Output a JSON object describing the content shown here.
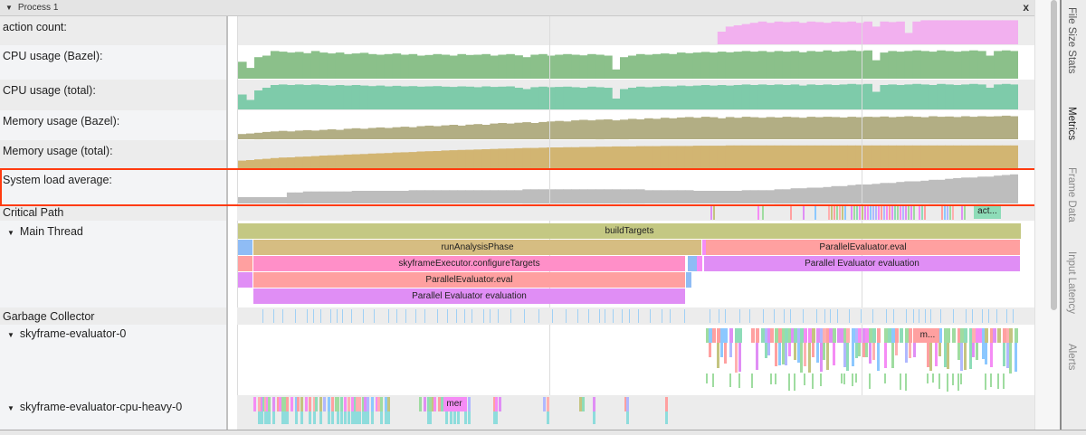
{
  "header": {
    "title": "Process 1",
    "close": "x"
  },
  "counters": [
    {
      "label": "action count:",
      "color": "#f2b0ef",
      "values": [
        0,
        0,
        0,
        0,
        0,
        0,
        0,
        0,
        0,
        0,
        0,
        0,
        0,
        0,
        0,
        0,
        0,
        0,
        0,
        0,
        0,
        0,
        0,
        0,
        0,
        0,
        0,
        0,
        0,
        0,
        0,
        0,
        0,
        0,
        0,
        0,
        0,
        0,
        0,
        0,
        0,
        0,
        0,
        0,
        0,
        0,
        0,
        0,
        0,
        0,
        0,
        0,
        0,
        0,
        0,
        0,
        0,
        0,
        0,
        0.5,
        0.7,
        0.75,
        0.8,
        0.85,
        0.9,
        0.85,
        0.9,
        0.88,
        0.9,
        0.85,
        0.9,
        0.88,
        0.85,
        0.9,
        0.88,
        0.9,
        0.85,
        0.9,
        0.7,
        0.9,
        0.88,
        0.9,
        0.45,
        0.9,
        0.95,
        0.95,
        0.95,
        0.95,
        0.95,
        0.95,
        0.95,
        0.95,
        0.95,
        0.95,
        0.95,
        0.95
      ]
    },
    {
      "label": "CPU usage (Bazel):",
      "color": "#8bc08a",
      "values": [
        0.55,
        0.35,
        0.7,
        0.75,
        0.9,
        0.88,
        0.85,
        0.87,
        0.83,
        0.9,
        0.85,
        0.82,
        0.85,
        0.8,
        0.82,
        0.84,
        0.8,
        0.78,
        0.8,
        0.82,
        0.78,
        0.8,
        0.75,
        0.77,
        0.8,
        0.78,
        0.75,
        0.8,
        0.77,
        0.78,
        0.8,
        0.75,
        0.78,
        0.8,
        0.76,
        0.7,
        0.78,
        0.8,
        0.75,
        0.78,
        0.8,
        0.78,
        0.76,
        0.8,
        0.78,
        0.75,
        0.3,
        0.7,
        0.75,
        0.8,
        0.78,
        0.8,
        0.82,
        0.8,
        0.85,
        0.83,
        0.85,
        0.87,
        0.85,
        0.88,
        0.86,
        0.88,
        0.9,
        0.88,
        0.9,
        0.87,
        0.9,
        0.88,
        0.9,
        0.86,
        0.9,
        0.88,
        0.92,
        0.88,
        0.9,
        0.92,
        0.9,
        0.92,
        0.6,
        0.85,
        0.9,
        0.88,
        0.9,
        0.92,
        0.9,
        0.88,
        0.92,
        0.9,
        0.88,
        0.9,
        0.92,
        0.9,
        0.75,
        0.9,
        0.92,
        0.9
      ]
    },
    {
      "label": "CPU usage (total):",
      "color": "#7ecbaa",
      "values": [
        0.55,
        0.35,
        0.7,
        0.8,
        0.9,
        0.92,
        0.9,
        0.92,
        0.9,
        0.92,
        0.9,
        0.88,
        0.9,
        0.88,
        0.9,
        0.88,
        0.86,
        0.88,
        0.85,
        0.87,
        0.85,
        0.86,
        0.84,
        0.85,
        0.86,
        0.84,
        0.83,
        0.85,
        0.84,
        0.82,
        0.85,
        0.83,
        0.84,
        0.85,
        0.8,
        0.75,
        0.82,
        0.84,
        0.82,
        0.83,
        0.84,
        0.82,
        0.8,
        0.84,
        0.82,
        0.8,
        0.4,
        0.75,
        0.8,
        0.84,
        0.82,
        0.84,
        0.86,
        0.85,
        0.88,
        0.86,
        0.88,
        0.9,
        0.88,
        0.9,
        0.88,
        0.9,
        0.92,
        0.9,
        0.92,
        0.9,
        0.92,
        0.9,
        0.92,
        0.88,
        0.92,
        0.9,
        0.92,
        0.9,
        0.92,
        0.94,
        0.92,
        0.94,
        0.65,
        0.9,
        0.92,
        0.9,
        0.92,
        0.94,
        0.92,
        0.9,
        0.94,
        0.92,
        0.9,
        0.92,
        0.94,
        0.92,
        0.8,
        0.92,
        0.94,
        0.92
      ]
    },
    {
      "label": "Memory usage (Bazel):",
      "color": "#b2ae84",
      "values": [
        0.2,
        0.22,
        0.25,
        0.28,
        0.3,
        0.32,
        0.3,
        0.33,
        0.35,
        0.33,
        0.36,
        0.38,
        0.36,
        0.4,
        0.42,
        0.4,
        0.43,
        0.45,
        0.43,
        0.46,
        0.48,
        0.46,
        0.5,
        0.52,
        0.5,
        0.53,
        0.55,
        0.52,
        0.56,
        0.58,
        0.55,
        0.6,
        0.62,
        0.6,
        0.63,
        0.65,
        0.62,
        0.66,
        0.68,
        0.7,
        0.68,
        0.72,
        0.74,
        0.72,
        0.75,
        0.76,
        0.72,
        0.75,
        0.78,
        0.76,
        0.8,
        0.78,
        0.82,
        0.8,
        0.83,
        0.85,
        0.82,
        0.86,
        0.84,
        0.8,
        0.85,
        0.82,
        0.86,
        0.84,
        0.82,
        0.85,
        0.83,
        0.86,
        0.84,
        0.82,
        0.86,
        0.84,
        0.86,
        0.85,
        0.83,
        0.86,
        0.84,
        0.86,
        0.85,
        0.87,
        0.84,
        0.86,
        0.88,
        0.86,
        0.84,
        0.88,
        0.86,
        0.87,
        0.85,
        0.88,
        0.86,
        0.88,
        0.87,
        0.88,
        0.9,
        0.88
      ]
    },
    {
      "label": "Memory usage (total):",
      "color": "#d2b572",
      "values": [
        0.3,
        0.32,
        0.35,
        0.37,
        0.4,
        0.42,
        0.43,
        0.45,
        0.46,
        0.48,
        0.5,
        0.51,
        0.52,
        0.54,
        0.55,
        0.56,
        0.58,
        0.59,
        0.6,
        0.62,
        0.63,
        0.64,
        0.66,
        0.67,
        0.68,
        0.7,
        0.71,
        0.72,
        0.73,
        0.74,
        0.75,
        0.76,
        0.77,
        0.78,
        0.79,
        0.8,
        0.8,
        0.81,
        0.82,
        0.82,
        0.83,
        0.83,
        0.84,
        0.84,
        0.85,
        0.85,
        0.86,
        0.86,
        0.86,
        0.87,
        0.87,
        0.87,
        0.88,
        0.88,
        0.88,
        0.88,
        0.89,
        0.89,
        0.89,
        0.89,
        0.9,
        0.9,
        0.9,
        0.9,
        0.9,
        0.9,
        0.9,
        0.9,
        0.9,
        0.9,
        0.9,
        0.9,
        0.9,
        0.9,
        0.9,
        0.9,
        0.9,
        0.9,
        0.9,
        0.9,
        0.9,
        0.9,
        0.9,
        0.9,
        0.9,
        0.9,
        0.9,
        0.9,
        0.9,
        0.9,
        0.9,
        0.9,
        0.9,
        0.9,
        0.9,
        0.9
      ]
    },
    {
      "label": "System load average:",
      "color": "#bdbdbd",
      "values": [
        0.2,
        0.2,
        0.2,
        0.2,
        0.2,
        0.2,
        0.35,
        0.35,
        0.38,
        0.38,
        0.38,
        0.38,
        0.38,
        0.38,
        0.4,
        0.4,
        0.4,
        0.4,
        0.4,
        0.4,
        0.4,
        0.42,
        0.42,
        0.42,
        0.42,
        0.42,
        0.42,
        0.42,
        0.42,
        0.42,
        0.42,
        0.42,
        0.42,
        0.42,
        0.42,
        0.45,
        0.45,
        0.45,
        0.45,
        0.45,
        0.45,
        0.45,
        0.45,
        0.45,
        0.45,
        0.45,
        0.45,
        0.45,
        0.45,
        0.45,
        0.42,
        0.42,
        0.42,
        0.42,
        0.42,
        0.42,
        0.4,
        0.4,
        0.4,
        0.4,
        0.4,
        0.4,
        0.42,
        0.42,
        0.42,
        0.42,
        0.45,
        0.45,
        0.48,
        0.48,
        0.5,
        0.5,
        0.52,
        0.55,
        0.55,
        0.58,
        0.6,
        0.6,
        0.62,
        0.65,
        0.65,
        0.68,
        0.7,
        0.7,
        0.72,
        0.75,
        0.75,
        0.78,
        0.8,
        0.82,
        0.82,
        0.85,
        0.85,
        0.88,
        0.9,
        0.92
      ]
    }
  ],
  "threads": {
    "critical_path": "Critical Path",
    "critical_slice": "act...",
    "main_thread": "Main Thread",
    "gc": "Garbage Collector",
    "eval0": "skyframe-evaluator-0",
    "eval0_slice": "m...",
    "cpu_heavy": "skyframe-evaluator-cpu-heavy-0",
    "cpu_heavy_slice": "mer"
  },
  "main_slices": {
    "build": "buildTargets",
    "analysis": "runAnalysisPhase",
    "pe_eval_right": "ParallelEvaluator.eval",
    "configure": "skyframeExecutor.configureTargets",
    "pe_eval_right2": "Parallel Evaluator evaluation",
    "pe_eval_left": "ParallelEvaluator.eval",
    "pe_evaluation_left": "Parallel Evaluator evaluation"
  },
  "side_tabs": [
    "File Size Stats",
    "Metrics",
    "Frame Data",
    "Input Latency",
    "Alerts"
  ],
  "palette": [
    "#8cc8ff",
    "#f58cf5",
    "#9fdca0",
    "#ffa0a0",
    "#e08ef5",
    "#c4c480",
    "#8edcb8",
    "#ffb0b0",
    "#b0b8ff"
  ]
}
